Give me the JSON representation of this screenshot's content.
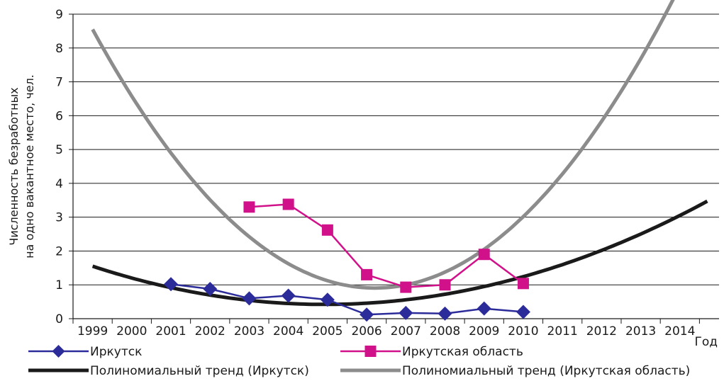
{
  "chart_data": {
    "type": "line",
    "xlabel": "Год",
    "ylabel_lines": [
      "Численность безработных",
      "на одно вакантное место, чел."
    ],
    "categories": [
      "1999",
      "2000",
      "2001",
      "2002",
      "2003",
      "2004",
      "2005",
      "2006",
      "2007",
      "2008",
      "2009",
      "2010",
      "2011",
      "2012",
      "2013",
      "2014"
    ],
    "ylim": [
      0,
      9
    ],
    "yticks": [
      "0",
      "1",
      "2",
      "3",
      "4",
      "5",
      "6",
      "7",
      "8",
      "9"
    ],
    "grid": true,
    "legend_position": "bottom",
    "series": [
      {
        "name": "Иркутск",
        "color": "#2b2b9a",
        "marker": "diamond",
        "values": [
          null,
          null,
          1.02,
          0.88,
          0.6,
          0.68,
          0.56,
          0.12,
          0.17,
          0.15,
          0.3,
          0.2,
          null,
          null,
          null,
          null
        ]
      },
      {
        "name": "Иркутская область",
        "color": "#d0118a",
        "marker": "square",
        "values": [
          null,
          null,
          null,
          null,
          3.3,
          3.38,
          2.62,
          1.3,
          0.93,
          1.0,
          1.9,
          1.04,
          null,
          null,
          null,
          null
        ]
      },
      {
        "name": "Полиномиальный тренд (Иркутск)",
        "color": "#1a1a1a",
        "trend": true,
        "coefficients": [
          1.55,
          -0.38,
          0.032
        ],
        "x_range": [
          0,
          15.7
        ]
      },
      {
        "name": "Полиномиальный тренд (Иркутская область)",
        "color": "#8c8c8c",
        "trend": true,
        "coefficients": [
          8.55,
          -2.12,
          0.147
        ],
        "x_range": [
          0,
          15.7
        ]
      }
    ]
  }
}
